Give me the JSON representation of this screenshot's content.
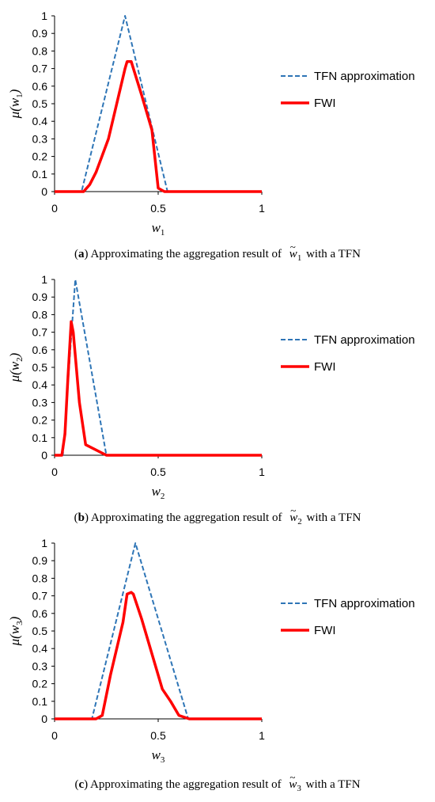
{
  "chart_data": [
    {
      "type": "line",
      "ylim": [
        0,
        1
      ],
      "xlim": [
        0,
        1
      ],
      "x_ticks": [
        "0",
        "0.5",
        "1"
      ],
      "y_ticks": [
        "0",
        "0.1",
        "0.2",
        "0.3",
        "0.4",
        "0.5",
        "0.6",
        "0.7",
        "0.8",
        "0.9",
        "1"
      ],
      "ylabel": {
        "base": "μ(w",
        "sub": "1",
        "close": ")"
      },
      "xlabel": {
        "base": "w",
        "sub": "1"
      },
      "caption": {
        "tag": "(a)",
        "text": "Approximating the aggregation result of",
        "symbol": "w",
        "symbol_sub": "1",
        "tail": "with a TFN"
      },
      "series": [
        {
          "name": "TFN approximation",
          "color": "#2E75B6",
          "style": "dashed",
          "x": [
            0,
            0.13,
            0.34,
            0.545,
            1
          ],
          "y": [
            0,
            0,
            1,
            0,
            0
          ]
        },
        {
          "name": "FWI",
          "color": "#FF0000",
          "style": "solid",
          "x": [
            0,
            0.14,
            0.17,
            0.2,
            0.26,
            0.3,
            0.34,
            0.35,
            0.37,
            0.42,
            0.47,
            0.5,
            0.53,
            1
          ],
          "y": [
            0,
            0,
            0.04,
            0.11,
            0.3,
            0.5,
            0.7,
            0.74,
            0.74,
            0.55,
            0.35,
            0.02,
            0,
            0
          ]
        }
      ]
    },
    {
      "type": "line",
      "ylim": [
        0,
        1
      ],
      "xlim": [
        0,
        1
      ],
      "x_ticks": [
        "0",
        "0.5",
        "1"
      ],
      "y_ticks": [
        "0",
        "0.1",
        "0.2",
        "0.3",
        "0.4",
        "0.5",
        "0.6",
        "0.7",
        "0.8",
        "0.9",
        "1"
      ],
      "ylabel": {
        "base": "μ(w",
        "sub": "2",
        "close": ")"
      },
      "xlabel": {
        "base": "w",
        "sub": "2"
      },
      "caption": {
        "tag": "(b)",
        "text": "Approximating the aggregation result of",
        "symbol": "w",
        "symbol_sub": "2",
        "tail": "with a TFN"
      },
      "series": [
        {
          "name": "TFN approximation",
          "color": "#2E75B6",
          "style": "dashed",
          "x": [
            0,
            0.04,
            0.1,
            0.25,
            1
          ],
          "y": [
            0,
            0,
            1,
            0,
            0
          ]
        },
        {
          "name": "FWI",
          "color": "#FF0000",
          "style": "solid",
          "x": [
            0,
            0.035,
            0.05,
            0.065,
            0.08,
            0.09,
            0.12,
            0.15,
            0.25,
            1
          ],
          "y": [
            0,
            0,
            0.12,
            0.45,
            0.76,
            0.7,
            0.3,
            0.06,
            0,
            0
          ]
        }
      ]
    },
    {
      "type": "line",
      "ylim": [
        0,
        1
      ],
      "xlim": [
        0,
        1
      ],
      "x_ticks": [
        "0",
        "0.5",
        "1"
      ],
      "y_ticks": [
        "0",
        "0.1",
        "0.2",
        "0.3",
        "0.4",
        "0.5",
        "0.6",
        "0.7",
        "0.8",
        "0.9",
        "1"
      ],
      "ylabel": {
        "base": "μ(w",
        "sub": "3",
        "close": ")"
      },
      "xlabel": {
        "base": "w",
        "sub": "3"
      },
      "caption": {
        "tag": "(c)",
        "text": "Approximating the aggregation result of",
        "symbol": "w",
        "symbol_sub": "3",
        "tail": "with a TFN"
      },
      "series": [
        {
          "name": "TFN approximation",
          "color": "#2E75B6",
          "style": "dashed",
          "x": [
            0,
            0.18,
            0.39,
            0.645,
            1
          ],
          "y": [
            0,
            0,
            1,
            0,
            0
          ]
        },
        {
          "name": "FWI",
          "color": "#FF0000",
          "style": "solid",
          "x": [
            0,
            0.2,
            0.23,
            0.27,
            0.33,
            0.35,
            0.37,
            0.38,
            0.42,
            0.47,
            0.52,
            0.56,
            0.6,
            0.65,
            1
          ],
          "y": [
            0,
            0,
            0.02,
            0.25,
            0.55,
            0.71,
            0.72,
            0.71,
            0.57,
            0.37,
            0.17,
            0.1,
            0.02,
            0,
            0
          ]
        }
      ]
    }
  ]
}
